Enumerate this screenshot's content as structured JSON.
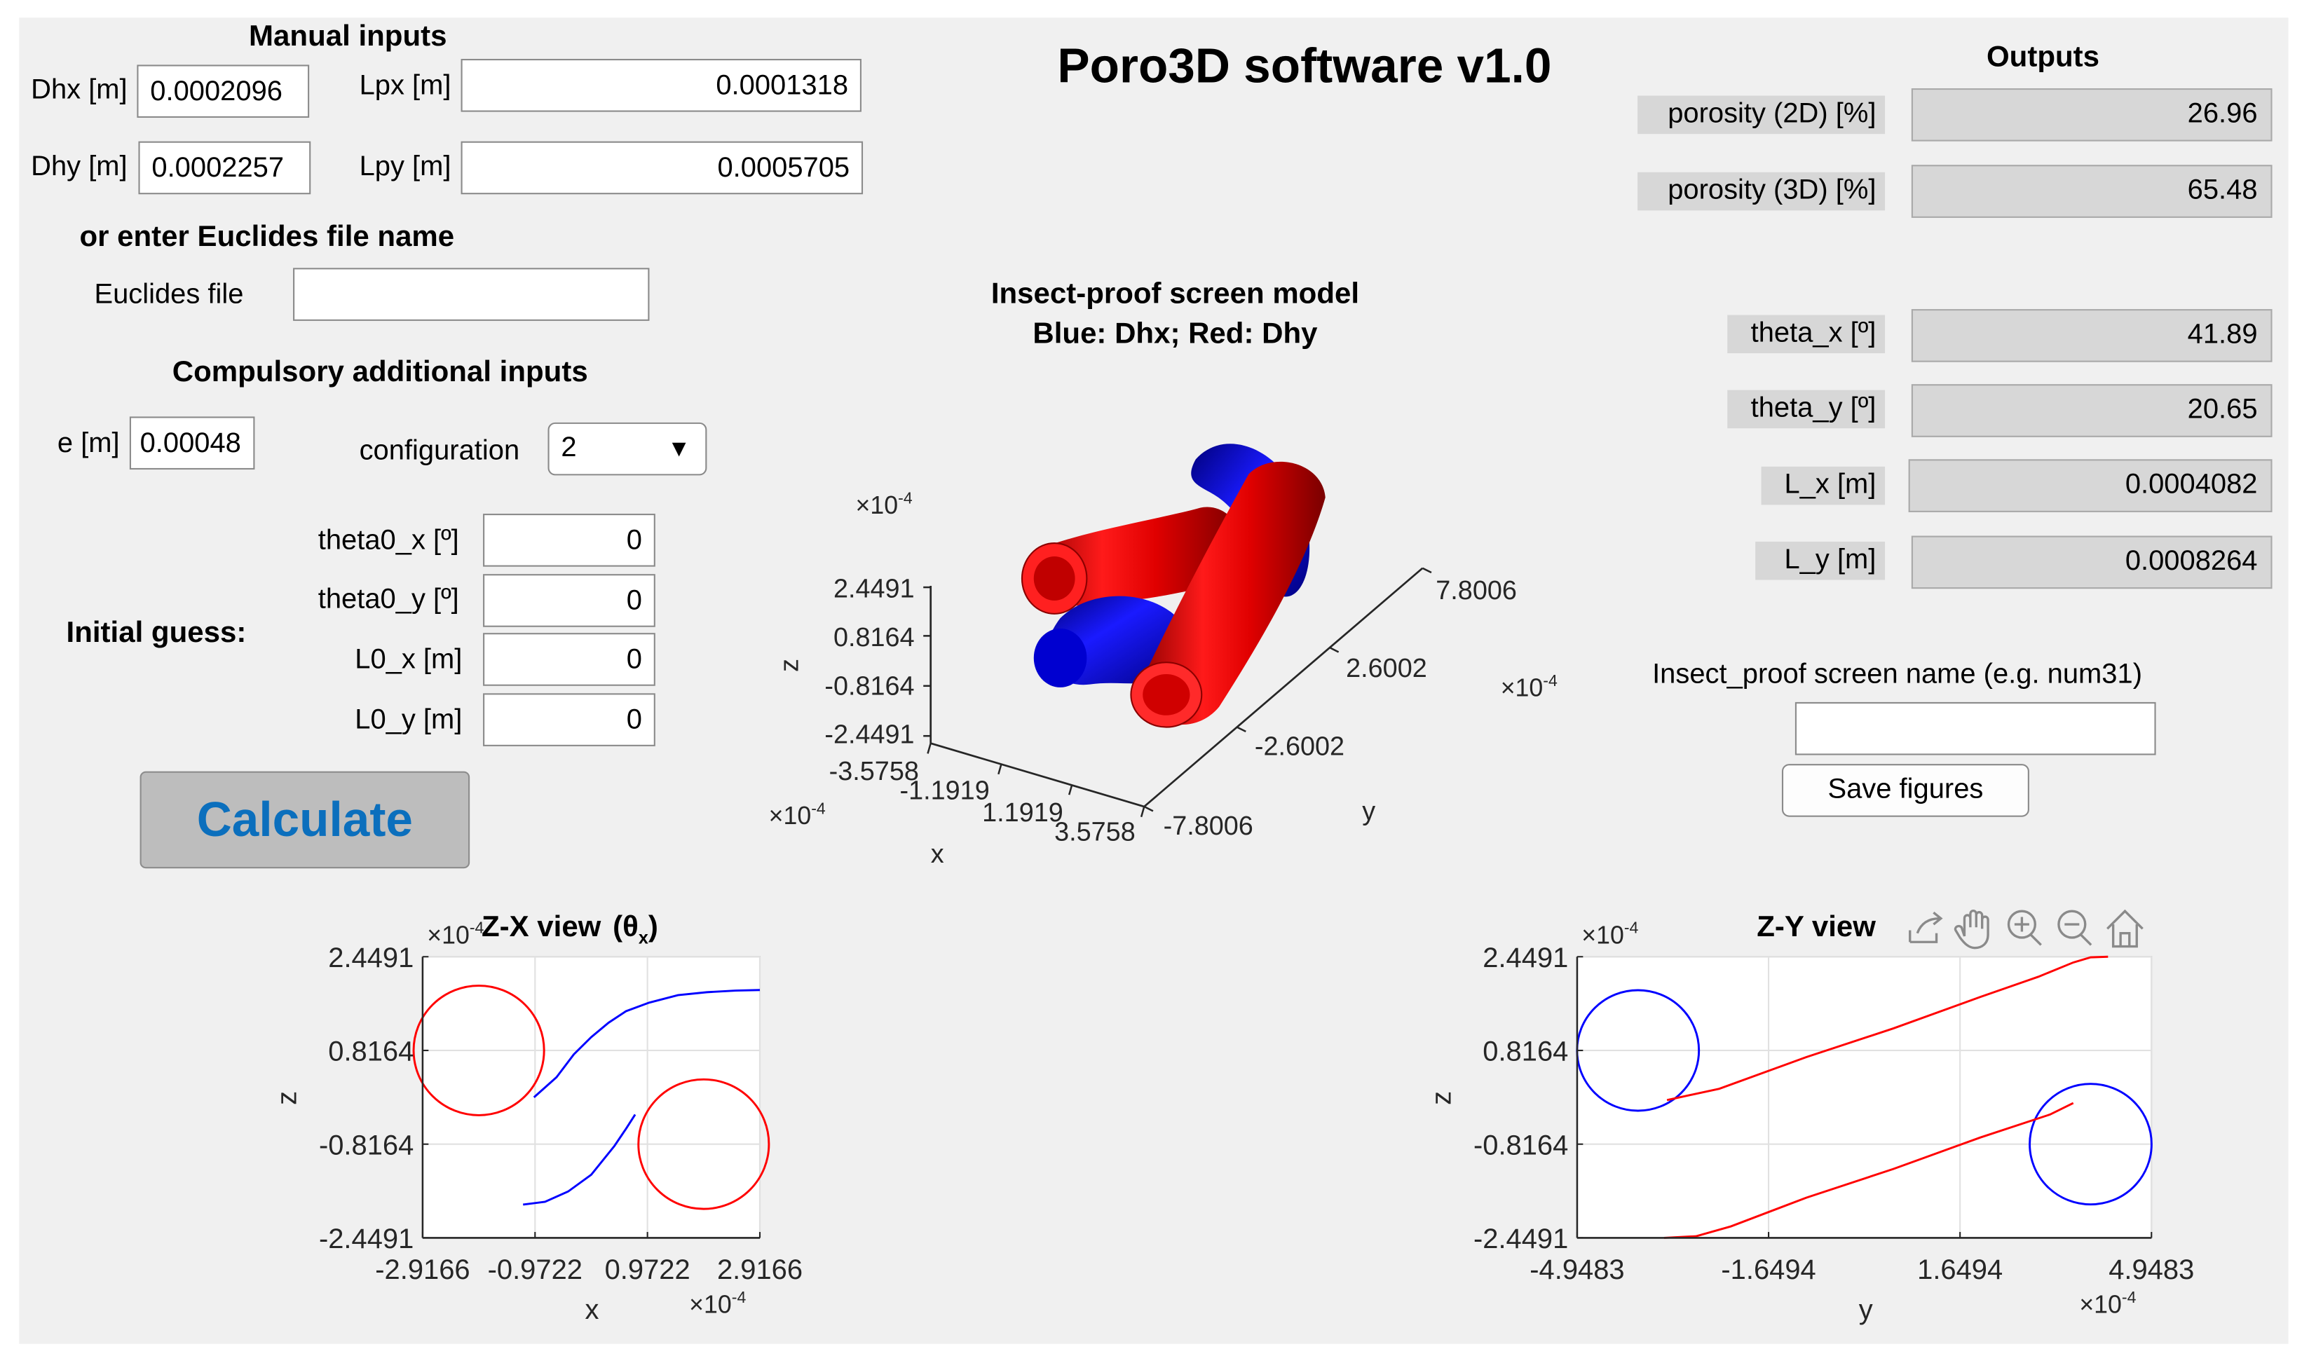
{
  "app_title": "Poro3D software v1.0",
  "manual_inputs": {
    "heading": "Manual inputs",
    "dhx": {
      "label": "Dhx [m]",
      "value": "0.0002096"
    },
    "dhy": {
      "label": "Dhy [m]",
      "value": "0.0002257"
    },
    "lpx": {
      "label": "Lpx [m]",
      "value": "0.0001318"
    },
    "lpy": {
      "label": "Lpy [m]",
      "value": "0.0005705"
    }
  },
  "euclides": {
    "heading": "or enter Euclides file name",
    "label": "Euclides file",
    "value": ""
  },
  "compulsory": {
    "heading": "Compulsory additional inputs",
    "e": {
      "label": "e [m]",
      "value": "0.00048"
    },
    "configuration": {
      "label": "configuration",
      "value": "2"
    }
  },
  "initial_guess": {
    "label": "Initial guess:",
    "theta0_x": {
      "label": "theta0_x [º]",
      "value": "0"
    },
    "theta0_y": {
      "label": "theta0_y [º]",
      "value": "0"
    },
    "l0_x": {
      "label": "L0_x [m]",
      "value": "0"
    },
    "l0_y": {
      "label": "L0_y [m]",
      "value": "0"
    }
  },
  "calculate_label": "Calculate",
  "outputs": {
    "heading": "Outputs",
    "porosity_2d": {
      "label": "porosity (2D) [%]",
      "value": "26.96"
    },
    "porosity_3d": {
      "label": "porosity (3D) [%]",
      "value": "65.48"
    },
    "theta_x": {
      "label": "theta_x [º]",
      "value": "41.89"
    },
    "theta_y": {
      "label": "theta_y [º]",
      "value": "20.65"
    },
    "l_x": {
      "label": "L_x [m]",
      "value": "0.0004082"
    },
    "l_y": {
      "label": "L_y  [m]",
      "value": "0.0008264"
    }
  },
  "screen_name": {
    "label": "Insect_proof screen name (e.g. num31)",
    "value": ""
  },
  "save_label": "Save figures",
  "colors": {
    "blue": "#0000ff",
    "red": "#ff0000",
    "accent": "#0b6fbd"
  },
  "toolbar_icons": [
    "export-icon",
    "pan-icon",
    "zoom-in-icon",
    "zoom-out-icon",
    "home-icon"
  ],
  "chart_data": [
    {
      "type": "3d-surface",
      "title_line1": "Insect-proof screen model",
      "title_line2": "Blue: Dhx;  Red: Dhy",
      "xlabel": "x",
      "ylabel": "y",
      "zlabel": "z",
      "x_exponent": "×10",
      "y_exponent": "×10",
      "z_exponent": "×10",
      "exponent_power": "-4",
      "x_ticks": [
        "-3.5758",
        "-1.1919",
        "1.1919",
        "3.5758"
      ],
      "y_ticks": [
        "-7.8006",
        "-2.6002",
        "2.6002",
        "7.8006"
      ],
      "z_ticks": [
        "2.4491",
        "0.8164",
        "-0.8164",
        "-2.4491"
      ]
    },
    {
      "type": "line",
      "title": "Z-X  view",
      "title_suffix": "(θ",
      "title_sub": "x",
      "title_close": ")",
      "xlabel": "x",
      "ylabel": "z",
      "x_exponent": "×10",
      "y_exponent": "×10",
      "exponent_power": "-4",
      "xlim": [
        -2.9166,
        2.9166
      ],
      "ylim": [
        -2.4491,
        2.4491
      ],
      "x_ticks": [
        -2.9166,
        -0.9722,
        0.9722,
        2.9166
      ],
      "y_ticks": [
        2.4491,
        0.8164,
        -0.8164,
        -2.4491
      ],
      "x_tick_labels": [
        "-2.9166",
        "-0.9722",
        "0.9722",
        "2.9166"
      ],
      "y_tick_labels": [
        "2.4491",
        "0.8164",
        "-0.8164",
        "-2.4491"
      ],
      "grid": true,
      "circles": [
        {
          "color": "red",
          "cx": -1.9444,
          "cy": 0.8164,
          "r": 1.1285
        },
        {
          "color": "red",
          "cx": 1.9444,
          "cy": -0.8164,
          "r": 1.1285
        }
      ],
      "series": [
        {
          "color": "blue",
          "x": [
            -0.99,
            -0.6,
            -0.3,
            0.0,
            0.3,
            0.6,
            1.0,
            1.5,
            2.0,
            2.5,
            2.9166
          ],
          "y": [
            0.0,
            0.35,
            0.75,
            1.05,
            1.3,
            1.5,
            1.65,
            1.78,
            1.83,
            1.86,
            1.87
          ]
        },
        {
          "color": "blue",
          "x": [
            -1.18,
            -0.8,
            -0.4,
            0.0,
            0.4,
            0.6,
            0.76
          ],
          "y": [
            -1.87,
            -1.82,
            -1.64,
            -1.35,
            -0.85,
            -0.55,
            -0.3
          ]
        }
      ]
    },
    {
      "type": "line",
      "title": "Z-Y  view",
      "xlabel": "y",
      "ylabel": "z",
      "x_exponent": "×10",
      "y_exponent": "×10",
      "exponent_power": "-4",
      "xlim": [
        -4.9483,
        4.9483
      ],
      "ylim": [
        -2.4491,
        2.4491
      ],
      "x_ticks": [
        -4.9483,
        -1.6494,
        1.6494,
        4.9483
      ],
      "y_ticks": [
        2.4491,
        0.8164,
        -0.8164,
        -2.4491
      ],
      "x_tick_labels": [
        "-4.9483",
        "-1.6494",
        "1.6494",
        "4.9483"
      ],
      "y_tick_labels": [
        "2.4491",
        "0.8164",
        "-0.8164",
        "-2.4491"
      ],
      "grid": true,
      "circles": [
        {
          "color": "blue",
          "cx": -3.9,
          "cy": 0.8164,
          "r": 1.05
        },
        {
          "color": "blue",
          "cx": 3.9,
          "cy": -0.8164,
          "r": 1.05
        }
      ],
      "series": [
        {
          "color": "red",
          "x": [
            -3.4,
            -2.5,
            -1.0,
            0.5,
            2.0,
            3.0,
            3.6,
            3.9,
            4.2
          ],
          "y": [
            -0.05,
            0.15,
            0.7,
            1.2,
            1.75,
            2.1,
            2.35,
            2.44,
            2.45
          ]
        },
        {
          "color": "red",
          "x": [
            -3.45,
            -2.9,
            -2.3,
            -1.0,
            0.5,
            2.0,
            3.2,
            3.6
          ],
          "y": [
            -2.45,
            -2.42,
            -2.25,
            -1.75,
            -1.25,
            -0.7,
            -0.3,
            -0.1
          ]
        }
      ]
    }
  ]
}
